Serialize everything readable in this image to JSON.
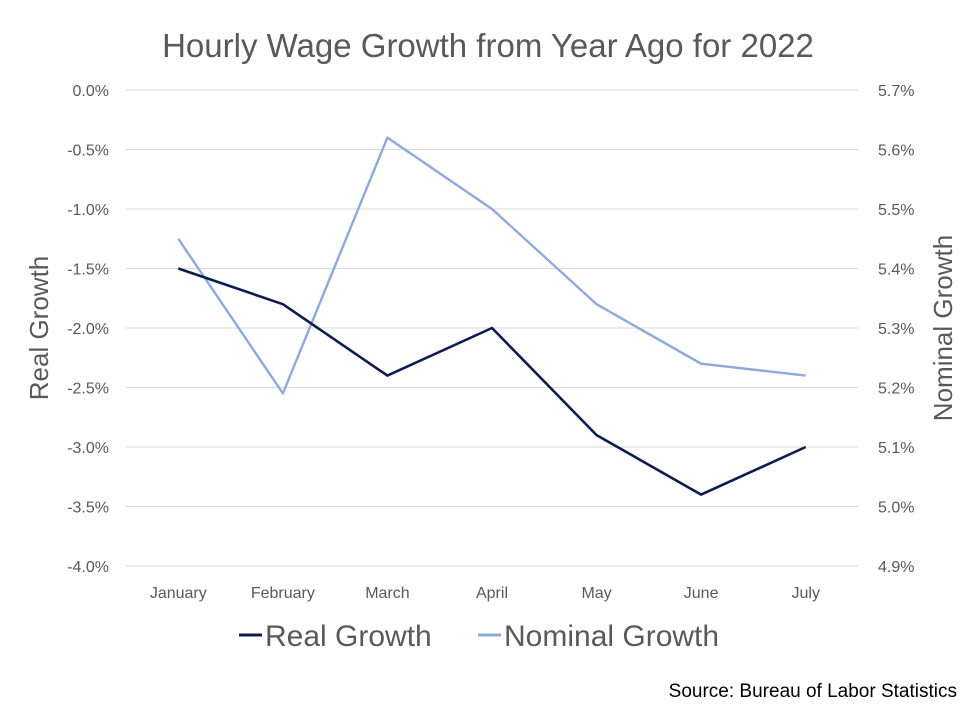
{
  "chart_data": {
    "type": "line",
    "title": "Hourly Wage Growth from Year Ago for 2022",
    "categories": [
      "January",
      "February",
      "March",
      "April",
      "May",
      "June",
      "July"
    ],
    "ylabel": "Real Growth",
    "y2label": "Nominal Growth",
    "ylim": [
      -4.0,
      0.0
    ],
    "y2lim": [
      4.9,
      5.7
    ],
    "yticks": [
      "0.0%",
      "-0.5%",
      "-1.0%",
      "-1.5%",
      "-2.0%",
      "-2.5%",
      "-3.0%",
      "-3.5%",
      "-4.0%"
    ],
    "y2ticks": [
      "5.7%",
      "5.6%",
      "5.5%",
      "5.4%",
      "5.3%",
      "5.2%",
      "5.1%",
      "5.0%",
      "4.9%"
    ],
    "grid": true,
    "legend_position": "bottom",
    "series": [
      {
        "name": "Real Growth",
        "axis": "left",
        "color": "#0d1b4f",
        "values": [
          -1.5,
          -1.8,
          -2.4,
          -2.0,
          -2.9,
          -3.4,
          -3.0
        ]
      },
      {
        "name": "Nominal Growth",
        "axis": "right",
        "color": "#8eaadb",
        "values": [
          5.45,
          5.19,
          5.62,
          5.5,
          5.34,
          5.24,
          5.22
        ]
      }
    ]
  },
  "source": "Source: Bureau of Labor Statistics"
}
